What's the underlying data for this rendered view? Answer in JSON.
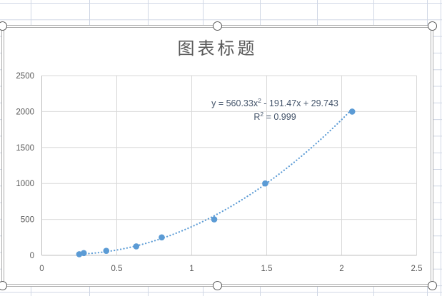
{
  "chart": {
    "title": "图表标题",
    "trendline_label": {
      "line1": {
        "pre": "y = 560.33x",
        "sup": "2",
        "post": " - 191.47x + 29.743"
      },
      "line2": {
        "pre": "R",
        "sup": "2",
        "post": " = 0.999"
      }
    }
  },
  "chart_data": {
    "type": "scatter",
    "title": "图表标题",
    "x": [
      0.25,
      0.28,
      0.43,
      0.63,
      0.8,
      1.15,
      1.49,
      2.07
    ],
    "y": [
      15.6,
      31.3,
      62.5,
      125,
      250,
      500,
      1000,
      2000
    ],
    "xlim": [
      0,
      2.5
    ],
    "ylim": [
      0,
      2500
    ],
    "x_ticks": [
      0,
      0.5,
      1,
      1.5,
      2,
      2.5
    ],
    "y_ticks": [
      0,
      500,
      1000,
      1500,
      2000,
      2500
    ],
    "x_tick_labels": [
      "0",
      "0.5",
      "1",
      "1.5",
      "2",
      "2.5"
    ],
    "y_tick_labels": [
      "0",
      "500",
      "1000",
      "1500",
      "2000",
      "2500"
    ],
    "grid": true,
    "legend": false,
    "trendline": {
      "kind": "polynomial",
      "order": 2,
      "coefficients": {
        "a": 560.33,
        "b": -191.47,
        "c": 29.743
      },
      "equation": "y = 560.33x² - 191.47x + 29.743",
      "r_squared": 0.999,
      "line_style": "dotted",
      "x_start": 0.25,
      "x_end": 2.07
    },
    "colors": {
      "marker": "#5B9BD5",
      "trendline": "#5B9BD5",
      "plot_gridline": "#D9D9D9",
      "axis_line": "#BFBFBF",
      "tick_text": "#595959",
      "title_text": "#595959",
      "equation_text": "#44546A",
      "sheet_gridline": "#D0D7E5",
      "chart_border": "#ABABAB"
    }
  },
  "selection_handles": [
    "top-left",
    "top-center",
    "top-right",
    "bottom-left",
    "bottom-center",
    "bottom-right"
  ]
}
